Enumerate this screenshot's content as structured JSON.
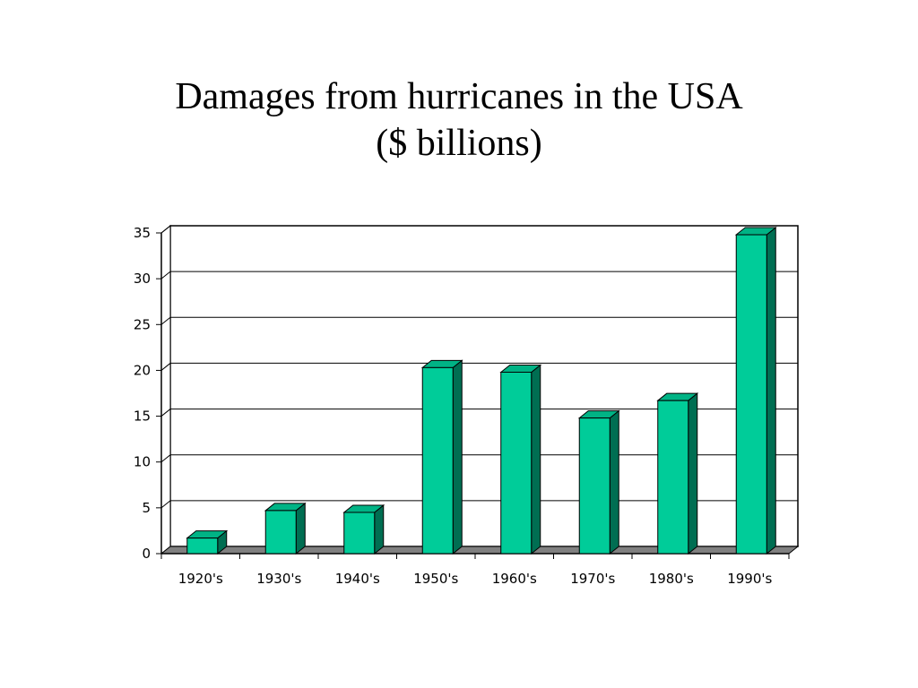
{
  "chart_data": {
    "type": "bar",
    "title": "Damages from hurricanes in the USA",
    "subtitle": "($ billions)",
    "xlabel": "",
    "ylabel": "",
    "categories": [
      "1920's",
      "1930's",
      "1940's",
      "1950's",
      "1960's",
      "1970's",
      "1980's",
      "1990's"
    ],
    "values": [
      1.7,
      4.7,
      4.5,
      20.3,
      19.8,
      14.8,
      16.7,
      34.8
    ],
    "ylim": [
      0,
      35
    ],
    "yticks": [
      0,
      5,
      10,
      15,
      20,
      25,
      30,
      35
    ],
    "grid": true,
    "legend": "none",
    "three_d": true
  },
  "colors": {
    "bar_front": "#00cc99",
    "bar_side": "#006e52",
    "bar_top": "#00b385",
    "floor": "#808080",
    "grid": "#000000"
  }
}
